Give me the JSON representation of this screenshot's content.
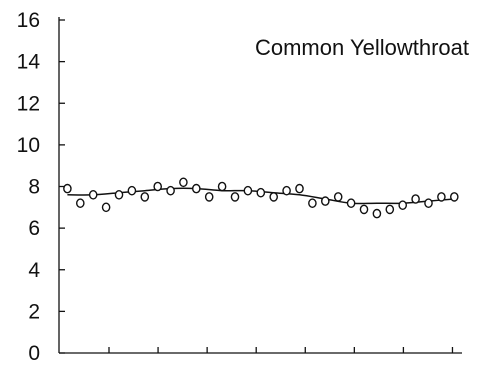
{
  "chart_data": {
    "type": "scatter",
    "title": "Common Yellowthroat",
    "xlabel": "",
    "ylabel": "",
    "ylim": [
      0,
      16
    ],
    "y_ticks": [
      "0",
      "2",
      "4",
      "6",
      "8",
      "10",
      "12",
      "14",
      "16"
    ],
    "x_tick_count": 8,
    "grid": false,
    "legend": "none",
    "series": [
      {
        "marker": "open-circle",
        "x": [
          1,
          2,
          3,
          4,
          5,
          6,
          7,
          8,
          9,
          10,
          11,
          12,
          13,
          14,
          15,
          16,
          17,
          18,
          19,
          20,
          21,
          22,
          23,
          24,
          25,
          26,
          27,
          28,
          29,
          30,
          31
        ],
        "values": [
          7.9,
          7.2,
          7.6,
          7.0,
          7.6,
          7.8,
          7.5,
          8.0,
          7.8,
          8.2,
          7.9,
          7.5,
          8.0,
          7.5,
          7.8,
          7.7,
          7.5,
          7.8,
          7.9,
          7.2,
          7.3,
          7.5,
          7.2,
          6.9,
          6.7,
          6.9,
          7.1,
          7.4,
          7.2,
          7.5,
          7.5
        ]
      },
      {
        "style": "smooth-line",
        "x": [
          1,
          3,
          5,
          7,
          9,
          11,
          13,
          15,
          17,
          19,
          21,
          23,
          25,
          27,
          29,
          31
        ],
        "values": [
          7.6,
          7.6,
          7.7,
          7.8,
          7.9,
          7.9,
          7.8,
          7.8,
          7.7,
          7.6,
          7.4,
          7.2,
          7.2,
          7.2,
          7.3,
          7.4
        ]
      }
    ]
  }
}
